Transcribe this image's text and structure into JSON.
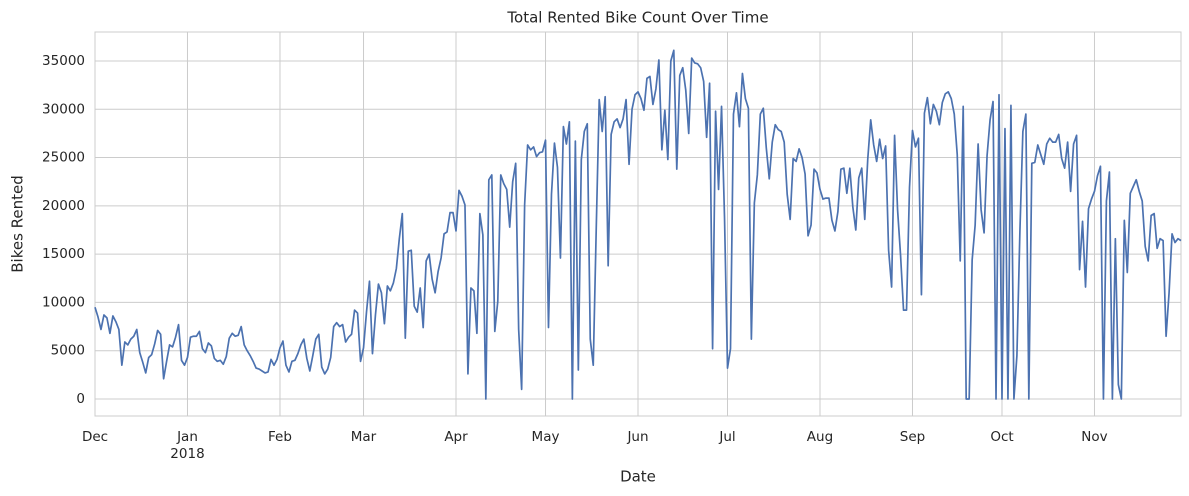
{
  "chart_data": {
    "type": "line",
    "title": "Total Rented Bike Count Over Time",
    "x_label": "Date",
    "y_label": "Bikes Rented",
    "color": "#4c72b0",
    "grid": true,
    "xlim": [
      0,
      364
    ],
    "ylim": [
      -1760,
      38000
    ],
    "xticks": [
      {
        "value": 0,
        "label": "Dec"
      },
      {
        "value": 31,
        "label": "Jan\n2018"
      },
      {
        "value": 62,
        "label": "Feb"
      },
      {
        "value": 90,
        "label": "Mar"
      },
      {
        "value": 121,
        "label": "Apr"
      },
      {
        "value": 151,
        "label": "May"
      },
      {
        "value": 182,
        "label": "Jun"
      },
      {
        "value": 212,
        "label": "Jul"
      },
      {
        "value": 243,
        "label": "Aug"
      },
      {
        "value": 274,
        "label": "Sep"
      },
      {
        "value": 304,
        "label": "Oct"
      },
      {
        "value": 335,
        "label": "Nov"
      }
    ],
    "yticks": [
      0,
      5000,
      10000,
      15000,
      20000,
      25000,
      30000,
      35000
    ],
    "x": [
      0,
      1,
      2,
      3,
      4,
      5,
      6,
      7,
      8,
      9,
      10,
      11,
      12,
      13,
      14,
      15,
      16,
      17,
      18,
      19,
      20,
      21,
      22,
      23,
      24,
      25,
      26,
      27,
      28,
      29,
      30,
      31,
      32,
      33,
      34,
      35,
      36,
      37,
      38,
      39,
      40,
      41,
      42,
      43,
      44,
      45,
      46,
      47,
      48,
      49,
      50,
      51,
      52,
      53,
      54,
      55,
      56,
      57,
      58,
      59,
      60,
      61,
      62,
      63,
      64,
      65,
      66,
      67,
      68,
      69,
      70,
      71,
      72,
      73,
      74,
      75,
      76,
      77,
      78,
      79,
      80,
      81,
      82,
      83,
      84,
      85,
      86,
      87,
      88,
      89,
      90,
      91,
      92,
      93,
      94,
      95,
      96,
      97,
      98,
      99,
      100,
      101,
      102,
      103,
      104,
      105,
      106,
      107,
      108,
      109,
      110,
      111,
      112,
      113,
      114,
      115,
      116,
      117,
      118,
      119,
      120,
      121,
      122,
      123,
      124,
      125,
      126,
      127,
      128,
      129,
      130,
      131,
      132,
      133,
      134,
      135,
      136,
      137,
      138,
      139,
      140,
      141,
      142,
      143,
      144,
      145,
      146,
      147,
      148,
      149,
      150,
      151,
      152,
      153,
      154,
      155,
      156,
      157,
      158,
      159,
      160,
      161,
      162,
      163,
      164,
      165,
      166,
      167,
      168,
      169,
      170,
      171,
      172,
      173,
      174,
      175,
      176,
      177,
      178,
      179,
      180,
      181,
      182,
      183,
      184,
      185,
      186,
      187,
      188,
      189,
      190,
      191,
      192,
      193,
      194,
      195,
      196,
      197,
      198,
      199,
      200,
      201,
      202,
      203,
      204,
      205,
      206,
      207,
      208,
      209,
      210,
      211,
      212,
      213,
      214,
      215,
      216,
      217,
      218,
      219,
      220,
      221,
      222,
      223,
      224,
      225,
      226,
      227,
      228,
      229,
      230,
      231,
      232,
      233,
      234,
      235,
      236,
      237,
      238,
      239,
      240,
      241,
      242,
      243,
      244,
      245,
      246,
      247,
      248,
      249,
      250,
      251,
      252,
      253,
      254,
      255,
      256,
      257,
      258,
      259,
      260,
      261,
      262,
      263,
      264,
      265,
      266,
      267,
      268,
      269,
      270,
      271,
      272,
      273,
      274,
      275,
      276,
      277,
      278,
      279,
      280,
      281,
      282,
      283,
      284,
      285,
      286,
      287,
      288,
      289,
      290,
      291,
      292,
      293,
      294,
      295,
      296,
      297,
      298,
      299,
      300,
      301,
      302,
      303,
      304,
      305,
      306,
      307,
      308,
      309,
      310,
      311,
      312,
      313,
      314,
      315,
      316,
      317,
      318,
      319,
      320,
      321,
      322,
      323,
      324,
      325,
      326,
      327,
      328,
      329,
      330,
      331,
      332,
      333,
      334,
      335,
      336,
      337,
      338,
      339,
      340,
      341,
      342,
      343,
      344,
      345,
      346,
      347,
      348,
      349,
      350,
      351,
      352,
      353,
      354,
      355,
      356,
      357,
      358,
      359,
      360,
      361,
      362,
      363,
      364
    ],
    "values": [
      9500,
      8500,
      7200,
      8700,
      8400,
      6800,
      8600,
      8000,
      7200,
      3500,
      5900,
      5600,
      6200,
      6500,
      7200,
      4800,
      3800,
      2700,
      4300,
      4600,
      5700,
      7100,
      6700,
      2100,
      3900,
      5600,
      5400,
      6400,
      7700,
      4000,
      3500,
      4300,
      6400,
      6500,
      6500,
      7000,
      5200,
      4800,
      5800,
      5500,
      4200,
      3900,
      4000,
      3600,
      4400,
      6300,
      6800,
      6500,
      6600,
      7500,
      5600,
      5000,
      4500,
      3900,
      3200,
      3100,
      2900,
      2700,
      2800,
      4100,
      3500,
      4100,
      5300,
      6000,
      3500,
      2800,
      3900,
      4000,
      4700,
      5600,
      6200,
      4200,
      2900,
      4500,
      6200,
      6700,
      3300,
      2600,
      3100,
      4300,
      7500,
      7900,
      7500,
      7700,
      5900,
      6400,
      6700,
      9200,
      8900,
      3900,
      5300,
      9000,
      12200,
      4700,
      8700,
      11900,
      11000,
      7800,
      11700,
      11200,
      12000,
      13500,
      16600,
      19200,
      6300,
      15300,
      15400,
      9600,
      9000,
      11500,
      7400,
      14300,
      15000,
      12400,
      11000,
      13200,
      14600,
      17100,
      17300,
      19300,
      19300,
      17400,
      21600,
      21000,
      20100,
      2600,
      11500,
      11200,
      6800,
      19200,
      17000,
      0,
      22700,
      23200,
      7000,
      10100,
      23200,
      22300,
      21700,
      17800,
      22500,
      24400,
      7200,
      1000,
      20100,
      26300,
      25800,
      26100,
      25100,
      25500,
      25600,
      26800,
      7400,
      21200,
      26500,
      24000,
      14600,
      28200,
      26400,
      28700,
      0,
      26700,
      3000,
      24800,
      27700,
      28500,
      6200,
      3500,
      17600,
      31000,
      27700,
      31300,
      13800,
      27400,
      28700,
      29000,
      28100,
      29000,
      31000,
      24300,
      30000,
      31500,
      31800,
      31100,
      29900,
      33200,
      33400,
      30500,
      32100,
      35100,
      25800,
      29900,
      24800,
      35000,
      36100,
      23800,
      33500,
      34300,
      32000,
      27500,
      35300,
      34800,
      34700,
      34300,
      32900,
      27100,
      32700,
      5200,
      29800,
      21700,
      30300,
      18800,
      3200,
      5200,
      29500,
      31700,
      28200,
      33700,
      31100,
      30100,
      6200,
      20300,
      23200,
      29500,
      30100,
      26000,
      22800,
      26600,
      28400,
      27900,
      27700,
      26600,
      21200,
      18600,
      24900,
      24600,
      25900,
      25000,
      23300,
      16900,
      18000,
      23800,
      23400,
      21700,
      20700,
      20800,
      20800,
      18500,
      17400,
      19400,
      23800,
      23900,
      21300,
      23900,
      19900,
      17500,
      22900,
      23900,
      18600,
      24800,
      28900,
      26300,
      24600,
      26900,
      24900,
      26200,
      15400,
      11600,
      27300,
      19600,
      14900,
      9200,
      9200,
      21900,
      27800,
      26100,
      27000,
      10800,
      29600,
      31200,
      28500,
      30500,
      29800,
      28400,
      30700,
      31600,
      31800,
      31100,
      29500,
      25300,
      14300,
      30300,
      0,
      0,
      14400,
      18000,
      26400,
      19600,
      17200,
      25200,
      28900,
      30800,
      0,
      31500,
      0,
      28000,
      0,
      30400,
      0,
      4500,
      17300,
      27700,
      29500,
      0,
      24400,
      24500,
      26300,
      25300,
      24300,
      26400,
      27000,
      26600,
      26600,
      27400,
      24900,
      23900,
      26600,
      21500,
      26400,
      27300,
      13400,
      18400,
      11600,
      19700,
      20700,
      21500,
      23100,
      24100,
      0,
      20500,
      23500,
      0,
      16600,
      1500,
      0,
      18500,
      13100,
      21300,
      22000,
      22700,
      21500,
      20500,
      15800,
      14300,
      19000,
      19200,
      15600,
      16600,
      16400,
      6500,
      11000,
      17100,
      16200,
      16600,
      16400
    ]
  }
}
